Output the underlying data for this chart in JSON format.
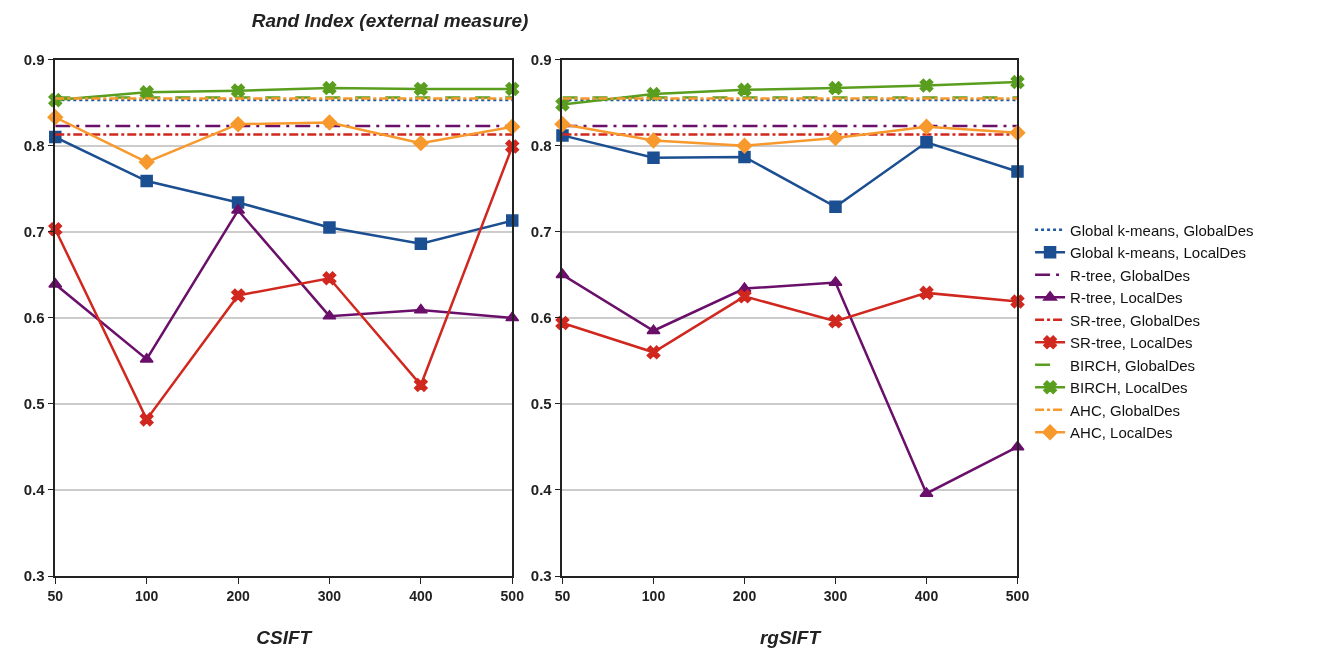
{
  "chart_data": [
    {
      "type": "line",
      "title": "Rand Index (external measure)",
      "xlabel": "CSIFT",
      "categories": [
        "50",
        "100",
        "200",
        "300",
        "400",
        "500"
      ],
      "ylim": [
        0.3,
        0.9
      ],
      "yticks": [
        0.3,
        0.4,
        0.5,
        0.6,
        0.7,
        0.8,
        0.9
      ],
      "grid": "y",
      "series": [
        {
          "color": "#1f5aa0",
          "marker": "none",
          "line_style": "dotted",
          "values": [
            0.853,
            0.853,
            0.853,
            0.853,
            0.853,
            0.853
          ]
        },
        {
          "color": "#1c4f91",
          "marker": "square",
          "line_style": "solid",
          "values": [
            0.81,
            0.759,
            0.734,
            0.705,
            0.686,
            0.713
          ]
        },
        {
          "color": "#6a0f6a",
          "marker": "none",
          "line_style": "longdashdot",
          "values": [
            0.823,
            0.823,
            0.823,
            0.823,
            0.823,
            0.823
          ]
        },
        {
          "color": "#6a0f6a",
          "marker": "triangle",
          "line_style": "solid",
          "values": [
            0.639,
            0.552,
            0.725,
            0.602,
            0.609,
            0.6
          ]
        },
        {
          "color": "#d0281f",
          "marker": "none",
          "line_style": "dashdot",
          "values": [
            0.813,
            0.813,
            0.813,
            0.813,
            0.813,
            0.813
          ]
        },
        {
          "color": "#d0281f",
          "marker": "cross",
          "line_style": "solid",
          "values": [
            0.703,
            0.482,
            0.626,
            0.646,
            0.522,
            0.799
          ]
        },
        {
          "color": "#5a9e1f",
          "marker": "none",
          "line_style": "dashed",
          "values": [
            0.856,
            0.856,
            0.856,
            0.856,
            0.856,
            0.856
          ]
        },
        {
          "color": "#5a9e1f",
          "marker": "cross",
          "line_style": "solid",
          "values": [
            0.853,
            0.862,
            0.864,
            0.867,
            0.866,
            0.866
          ]
        },
        {
          "color": "#f7992c",
          "marker": "none",
          "line_style": "dashdot",
          "values": [
            0.855,
            0.855,
            0.855,
            0.855,
            0.855,
            0.855
          ]
        },
        {
          "color": "#f7992c",
          "marker": "diamond",
          "line_style": "solid",
          "values": [
            0.833,
            0.781,
            0.825,
            0.827,
            0.803,
            0.822
          ]
        }
      ]
    },
    {
      "type": "line",
      "xlabel": "rgSIFT",
      "categories": [
        "50",
        "100",
        "200",
        "300",
        "400",
        "500"
      ],
      "ylim": [
        0.3,
        0.9
      ],
      "yticks": [
        0.3,
        0.4,
        0.5,
        0.6,
        0.7,
        0.8,
        0.9
      ],
      "grid": "y",
      "legend": "right",
      "series": [
        {
          "name": "Global k-means, GlobalDes",
          "color": "#1f5aa0",
          "marker": "none",
          "line_style": "dotted",
          "values": [
            0.853,
            0.853,
            0.853,
            0.853,
            0.853,
            0.853
          ]
        },
        {
          "name": "Global k-means, LocalDes",
          "color": "#1c4f91",
          "marker": "square",
          "line_style": "solid",
          "values": [
            0.812,
            0.786,
            0.787,
            0.729,
            0.804,
            0.77
          ]
        },
        {
          "name": "R-tree, GlobalDes",
          "color": "#6a0f6a",
          "marker": "none",
          "line_style": "longdashdot",
          "values": [
            0.823,
            0.823,
            0.823,
            0.823,
            0.823,
            0.823
          ]
        },
        {
          "name": "R-tree, LocalDes",
          "color": "#6a0f6a",
          "marker": "triangle",
          "line_style": "solid",
          "values": [
            0.65,
            0.585,
            0.634,
            0.641,
            0.396,
            0.45
          ]
        },
        {
          "name": "SR-tree, GlobalDes",
          "color": "#d0281f",
          "marker": "none",
          "line_style": "dashdot",
          "values": [
            0.813,
            0.813,
            0.813,
            0.813,
            0.813,
            0.813
          ]
        },
        {
          "name": "SR-tree, LocalDes",
          "color": "#d0281f",
          "marker": "cross",
          "line_style": "solid",
          "values": [
            0.594,
            0.56,
            0.625,
            0.596,
            0.629,
            0.619
          ]
        },
        {
          "name": "BIRCH, GlobalDes",
          "color": "#5a9e1f",
          "marker": "none",
          "line_style": "dashed",
          "values": [
            0.856,
            0.856,
            0.856,
            0.856,
            0.856,
            0.856
          ]
        },
        {
          "name": "BIRCH, LocalDes",
          "color": "#5a9e1f",
          "marker": "cross",
          "line_style": "solid",
          "values": [
            0.848,
            0.86,
            0.865,
            0.867,
            0.87,
            0.874
          ]
        },
        {
          "name": "AHC, GlobalDes",
          "color": "#f7992c",
          "marker": "none",
          "line_style": "dashdot",
          "values": [
            0.855,
            0.855,
            0.855,
            0.855,
            0.855,
            0.855
          ]
        },
        {
          "name": "AHC, LocalDes",
          "color": "#f7992c",
          "marker": "diamond",
          "line_style": "solid",
          "values": [
            0.825,
            0.806,
            0.8,
            0.809,
            0.822,
            0.815
          ]
        }
      ]
    }
  ]
}
